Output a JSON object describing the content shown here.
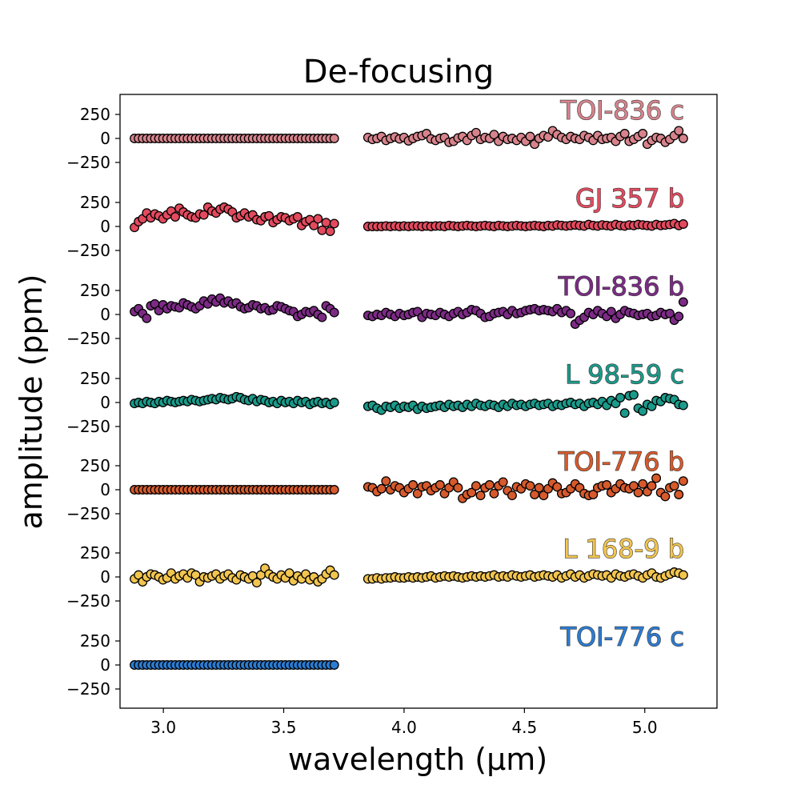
{
  "chart_data": {
    "type": "scatter",
    "title": "De-focusing",
    "xlabel": "wavelength (μm)",
    "ylabel": "amplitude (ppm)",
    "xlim": [
      2.82,
      5.3
    ],
    "xticks": [
      3.0,
      3.5,
      4.0,
      4.5,
      5.0
    ],
    "xtick_labels": [
      "3.0",
      "3.5",
      "4.0",
      "4.5",
      "5.0"
    ],
    "ylim_per_panel": [
      -350,
      350
    ],
    "yticks": [
      250,
      0,
      -250
    ],
    "ytick_labels": [
      "250",
      "0",
      "−250"
    ],
    "panels": [
      {
        "name": "TOI-836 c",
        "color": "#d7838c",
        "nrs1": [
          0,
          0,
          0,
          0,
          0,
          0,
          0,
          0,
          0,
          0,
          0,
          0,
          0,
          0,
          0,
          0,
          0,
          0,
          0,
          0,
          0,
          0,
          0,
          0,
          0,
          0,
          0,
          0,
          0,
          0,
          0,
          0,
          0,
          0,
          0,
          0,
          0,
          0,
          0,
          0,
          0,
          0,
          0,
          0,
          0,
          0,
          0,
          0,
          0,
          0
        ],
        "nrs2": [
          10,
          -10,
          0,
          20,
          -20,
          0,
          15,
          -5,
          10,
          -25,
          0,
          20,
          30,
          50,
          -5,
          -20,
          0,
          10,
          -40,
          -30,
          5,
          20,
          -20,
          30,
          60,
          -10,
          10,
          0,
          40,
          -30,
          20,
          -10,
          0,
          -20,
          10,
          -30,
          20,
          -60,
          0,
          30,
          15,
          80,
          40,
          10,
          -10,
          20,
          0,
          -10,
          30,
          10,
          -20,
          30,
          -10,
          0,
          10,
          -30,
          20,
          50,
          -30,
          -10,
          20,
          50,
          -60,
          -20,
          10,
          0,
          -40,
          -10,
          30,
          80,
          0
        ]
      },
      {
        "name": "GJ 357 b",
        "color": "#e34a5e",
        "nrs1": [
          -10,
          50,
          80,
          140,
          90,
          130,
          110,
          80,
          120,
          160,
          100,
          190,
          150,
          120,
          100,
          90,
          130,
          120,
          200,
          160,
          140,
          180,
          200,
          180,
          150,
          90,
          110,
          140,
          100,
          120,
          70,
          60,
          100,
          110,
          40,
          70,
          100,
          90,
          60,
          80,
          100,
          10,
          50,
          70,
          10,
          80,
          -40,
          40,
          -50,
          30
        ],
        "nrs2": [
          0,
          0,
          0,
          0,
          5,
          0,
          5,
          0,
          5,
          0,
          5,
          5,
          0,
          5,
          0,
          5,
          5,
          0,
          10,
          5,
          0,
          5,
          10,
          5,
          0,
          5,
          10,
          5,
          0,
          10,
          5,
          0,
          5,
          10,
          5,
          0,
          5,
          10,
          5,
          0,
          10,
          5,
          15,
          10,
          5,
          10,
          15,
          10,
          5,
          20,
          10,
          5,
          15,
          10,
          5,
          20,
          10,
          5,
          15,
          10,
          20,
          15,
          10,
          5,
          20,
          10,
          15,
          20,
          30,
          10,
          25
        ]
      },
      {
        "name": "TOI-836 b",
        "color": "#7c2b85",
        "nrs1": [
          30,
          60,
          10,
          -40,
          90,
          110,
          40,
          100,
          60,
          90,
          80,
          70,
          120,
          100,
          80,
          60,
          90,
          140,
          110,
          160,
          130,
          170,
          120,
          140,
          110,
          120,
          80,
          60,
          70,
          100,
          90,
          60,
          70,
          40,
          50,
          90,
          80,
          60,
          40,
          30,
          -20,
          0,
          30,
          20,
          40,
          0,
          -30,
          90,
          60,
          20
        ],
        "nrs2": [
          -10,
          -20,
          0,
          -10,
          20,
          0,
          -20,
          10,
          -10,
          0,
          20,
          30,
          -30,
          10,
          0,
          -10,
          20,
          0,
          -20,
          10,
          30,
          0,
          20,
          50,
          40,
          10,
          -30,
          -20,
          10,
          20,
          30,
          0,
          40,
          10,
          20,
          40,
          50,
          60,
          40,
          50,
          40,
          30,
          60,
          20,
          40,
          10,
          -100,
          -60,
          -30,
          20,
          0,
          40,
          10,
          -20,
          30,
          -40,
          0,
          40,
          20,
          10,
          -10,
          0,
          10,
          -20,
          -10,
          20,
          0,
          10,
          -60,
          -20,
          130
        ]
      },
      {
        "name": "L 98-59 c",
        "color": "#1a9a8a",
        "nrs1": [
          -10,
          0,
          -10,
          10,
          0,
          -10,
          10,
          0,
          20,
          10,
          0,
          10,
          20,
          10,
          30,
          20,
          10,
          20,
          30,
          40,
          30,
          50,
          40,
          30,
          40,
          60,
          50,
          30,
          20,
          40,
          10,
          30,
          20,
          0,
          10,
          -10,
          20,
          0,
          10,
          -10,
          20,
          0,
          10,
          -20,
          0,
          10,
          -10,
          0,
          -20,
          0
        ],
        "nrs2": [
          -40,
          -30,
          -60,
          -80,
          -40,
          -50,
          -30,
          -60,
          -40,
          -50,
          -30,
          -70,
          -40,
          -60,
          -50,
          -40,
          -30,
          -50,
          -20,
          -40,
          -30,
          -50,
          -20,
          -40,
          -10,
          -30,
          -40,
          -20,
          -30,
          -50,
          -20,
          -40,
          -10,
          -30,
          -20,
          -40,
          -20,
          -10,
          -30,
          -20,
          -10,
          -40,
          -20,
          -30,
          -10,
          0,
          -20,
          -10,
          -40,
          -10,
          0,
          -20,
          10,
          -30,
          20,
          -10,
          50,
          -110,
          70,
          80,
          -60,
          -90,
          -20,
          -40,
          20,
          10,
          50,
          40,
          30,
          -20,
          -30
        ]
      },
      {
        "name": "TOI-776 b",
        "color": "#d65a2c",
        "nrs1": [
          0,
          0,
          0,
          0,
          0,
          0,
          0,
          0,
          0,
          0,
          0,
          0,
          0,
          0,
          0,
          0,
          0,
          0,
          0,
          0,
          0,
          0,
          0,
          0,
          0,
          0,
          0,
          0,
          0,
          0,
          0,
          0,
          0,
          0,
          0,
          0,
          0,
          0,
          0,
          0,
          0,
          0,
          0,
          0,
          0,
          0,
          0,
          0,
          0,
          0
        ],
        "nrs2": [
          30,
          20,
          -20,
          10,
          90,
          0,
          40,
          20,
          -30,
          10,
          50,
          -40,
          30,
          40,
          -10,
          20,
          50,
          -40,
          20,
          80,
          20,
          -90,
          -50,
          -30,
          40,
          -60,
          20,
          50,
          -40,
          40,
          80,
          -10,
          -60,
          30,
          10,
          60,
          40,
          -50,
          20,
          -60,
          10,
          70,
          30,
          -40,
          -30,
          10,
          60,
          20,
          -40,
          -60,
          -50,
          20,
          40,
          50,
          -30,
          10,
          60,
          20,
          10,
          40,
          -30,
          60,
          -20,
          40,
          120,
          -30,
          -70,
          20,
          40,
          -50,
          90
        ]
      },
      {
        "name": "L 168-9 b",
        "color": "#f2c54f",
        "nrs1": [
          -20,
          20,
          -50,
          0,
          30,
          20,
          0,
          -30,
          -10,
          40,
          -20,
          10,
          30,
          -10,
          40,
          20,
          -50,
          0,
          -10,
          10,
          30,
          -20,
          10,
          30,
          -10,
          -30,
          20,
          0,
          -20,
          10,
          -60,
          20,
          90,
          30,
          0,
          -20,
          20,
          -10,
          40,
          -40,
          10,
          -20,
          30,
          -30,
          0,
          -50,
          -20,
          30,
          70,
          20
        ],
        "nrs2": [
          -20,
          -20,
          -10,
          -20,
          -10,
          -10,
          0,
          -10,
          -10,
          0,
          -10,
          0,
          -10,
          0,
          10,
          -10,
          0,
          10,
          0,
          10,
          0,
          -10,
          0,
          10,
          0,
          10,
          0,
          10,
          20,
          0,
          10,
          0,
          20,
          10,
          0,
          10,
          20,
          0,
          10,
          20,
          10,
          0,
          20,
          -10,
          10,
          30,
          0,
          20,
          -10,
          10,
          30,
          20,
          10,
          20,
          -10,
          30,
          10,
          0,
          20,
          30,
          10,
          -10,
          20,
          40,
          0,
          -10,
          10,
          30,
          50,
          40,
          20
        ]
      },
      {
        "name": "TOI-776 c",
        "color": "#2b7cd2",
        "nrs1": [
          0,
          0,
          0,
          0,
          0,
          0,
          0,
          0,
          0,
          0,
          0,
          0,
          0,
          0,
          0,
          0,
          0,
          0,
          0,
          0,
          0,
          0,
          0,
          0,
          0,
          0,
          0,
          0,
          0,
          0,
          0,
          0,
          0,
          0,
          0,
          0,
          0,
          0,
          0,
          0,
          0,
          0,
          0,
          0,
          0,
          0,
          0,
          0,
          0,
          0
        ],
        "nrs2": []
      }
    ],
    "nrs1_range_um": [
      2.88,
      3.71
    ],
    "nrs2_range_um": [
      3.85,
      5.16
    ]
  }
}
